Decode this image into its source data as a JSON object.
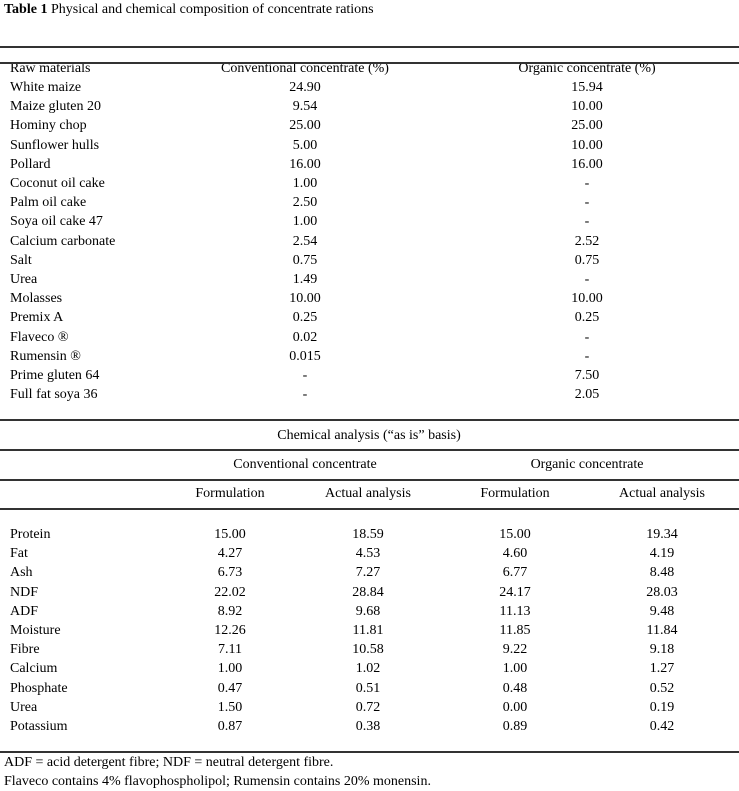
{
  "caption": {
    "label": "Table 1",
    "text": " Physical and chemical composition of concentrate rations"
  },
  "composition": {
    "headers": [
      "Raw materials",
      "Conventional concentrate (%)",
      "Organic concentrate (%)"
    ],
    "rows": [
      [
        "White maize",
        "24.90",
        "15.94"
      ],
      [
        "Maize gluten 20",
        "9.54",
        "10.00"
      ],
      [
        "Hominy chop",
        "25.00",
        "25.00"
      ],
      [
        "Sunflower hulls",
        "5.00",
        "10.00"
      ],
      [
        "Pollard",
        "16.00",
        "16.00"
      ],
      [
        "Coconut oil cake",
        "1.00",
        "-"
      ],
      [
        "Palm oil cake",
        "2.50",
        "-"
      ],
      [
        "Soya oil cake 47",
        "1.00",
        "-"
      ],
      [
        "Calcium carbonate",
        "2.54",
        "2.52"
      ],
      [
        "Salt",
        "0.75",
        "0.75"
      ],
      [
        "Urea",
        "1.49",
        "-"
      ],
      [
        "Molasses",
        "10.00",
        "10.00"
      ],
      [
        "Premix A",
        "0.25",
        "0.25"
      ],
      [
        "Flaveco ®",
        "0.02",
        "-"
      ],
      [
        "Rumensin ®",
        "0.015",
        "-"
      ],
      [
        "Prime gluten 64",
        "-",
        "7.50"
      ],
      [
        "Full fat soya 36",
        "-",
        "2.05"
      ]
    ]
  },
  "analysis": {
    "title": "Chemical analysis (“as is” basis)",
    "groups": [
      "Conventional concentrate",
      "Organic concentrate"
    ],
    "subheaders": [
      "Formulation",
      "Actual analysis",
      "Formulation",
      "Actual analysis"
    ],
    "rows": [
      [
        "Protein",
        "15.00",
        "18.59",
        "15.00",
        "19.34"
      ],
      [
        "Fat",
        "4.27",
        "4.53",
        "4.60",
        "4.19"
      ],
      [
        "Ash",
        "6.73",
        "7.27",
        "6.77",
        "8.48"
      ],
      [
        "NDF",
        "22.02",
        "28.84",
        "24.17",
        "28.03"
      ],
      [
        "ADF",
        "8.92",
        "9.68",
        "11.13",
        "9.48"
      ],
      [
        "Moisture",
        "12.26",
        "11.81",
        "11.85",
        "11.84"
      ],
      [
        "Fibre",
        "7.11",
        "10.58",
        "9.22",
        "9.18"
      ],
      [
        "Calcium",
        "1.00",
        "1.02",
        "1.00",
        "1.27"
      ],
      [
        "Phosphate",
        "0.47",
        "0.51",
        "0.48",
        "0.52"
      ],
      [
        "Urea",
        "1.50",
        "0.72",
        "0.00",
        "0.19"
      ],
      [
        "Potassium",
        "0.87",
        "0.38",
        "0.89",
        "0.42"
      ]
    ]
  },
  "footnotes": [
    "ADF = acid detergent fibre; NDF = neutral detergent fibre.",
    "Flaveco contains 4% flavophospholipol; Rumensin contains 20% monensin."
  ]
}
